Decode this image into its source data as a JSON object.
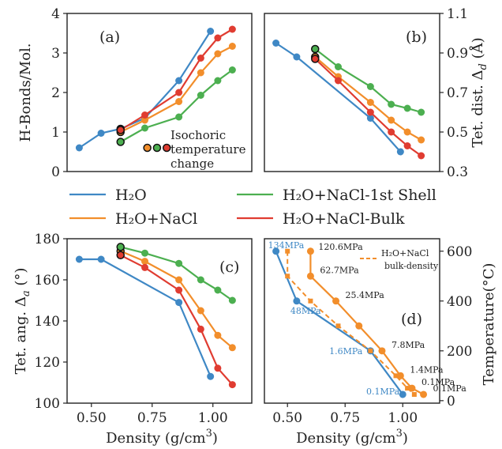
{
  "figure": {
    "legend": [
      {
        "label": "H$_2$O",
        "text": "H₂O",
        "color": "#3f88c5"
      },
      {
        "label": "H2O+NaCl-1st Shell",
        "text": "H₂O+NaCl-1st Shell",
        "color": "#4caf50"
      },
      {
        "label": "H2O+NaCl",
        "text": "H₂O+NaCl",
        "color": "#f28e2b"
      },
      {
        "label": "H2O+NaCl-Bulk",
        "text": "H₂O+NaCl-Bulk",
        "color": "#e03c31"
      }
    ]
  },
  "chart_data": [
    {
      "panel": "(a)",
      "type": "line",
      "xlabel": "",
      "ylabel": "H-Bonds/Mol.",
      "xlim": [
        0.4,
        1.16
      ],
      "ylim": [
        0,
        4
      ],
      "yticks": [
        "0",
        "1",
        "2",
        "3",
        "4"
      ],
      "series": [
        {
          "name": "H₂O",
          "x": [
            0.45,
            0.54,
            0.62,
            0.72,
            0.86,
            0.99
          ],
          "y": [
            0.6,
            0.97,
            1.08,
            1.35,
            2.3,
            3.55
          ]
        },
        {
          "name": "H₂O+NaCl",
          "x": [
            0.62,
            0.72,
            0.86,
            0.95,
            1.02,
            1.08
          ],
          "y": [
            1.0,
            1.3,
            1.77,
            2.5,
            2.98,
            3.17
          ]
        },
        {
          "name": "H₂O+NaCl-1st Shell",
          "x": [
            0.62,
            0.72,
            0.86,
            0.95,
            1.02,
            1.08
          ],
          "y": [
            0.75,
            1.1,
            1.38,
            1.93,
            2.3,
            2.57
          ]
        },
        {
          "name": "H₂O+NaCl-Bulk",
          "x": [
            0.62,
            0.72,
            0.86,
            0.95,
            1.02,
            1.08
          ],
          "y": [
            1.05,
            1.43,
            2.0,
            2.87,
            3.38,
            3.6
          ]
        }
      ],
      "annotation": [
        "Isochoric",
        "temperature",
        "change"
      ],
      "isochoric_markers": [
        {
          "x": 0.73,
          "y": 0.6,
          "color": "#f28e2b"
        },
        {
          "x": 0.77,
          "y": 0.6,
          "color": "#4caf50"
        },
        {
          "x": 0.81,
          "y": 0.6,
          "color": "#e03c31"
        }
      ]
    },
    {
      "panel": "(b)",
      "type": "line",
      "xlabel": "",
      "ylabel": "Tet. dist. Δd (Å)",
      "ylabel_main": "Tet. dist. Δ",
      "ylabel_sub": "d",
      "ylabel_unit": " (Å)",
      "xlim": [
        0.4,
        1.16
      ],
      "ylim": [
        0.3,
        1.1
      ],
      "yticks": [
        "0.3",
        "0.5",
        "0.7",
        "0.9",
        "1.1"
      ],
      "series": [
        {
          "name": "H₂O",
          "x": [
            0.45,
            0.54,
            0.86,
            0.99
          ],
          "y": [
            0.95,
            0.88,
            0.57,
            0.4
          ]
        },
        {
          "name": "H₂O+NaCl",
          "x": [
            0.62,
            0.72,
            0.86,
            0.95,
            1.02,
            1.08
          ],
          "y": [
            0.88,
            0.78,
            0.65,
            0.56,
            0.5,
            0.46
          ]
        },
        {
          "name": "H₂O+NaCl-1st Shell",
          "x": [
            0.62,
            0.72,
            0.86,
            0.95,
            1.02,
            1.08
          ],
          "y": [
            0.92,
            0.83,
            0.73,
            0.64,
            0.62,
            0.6
          ]
        },
        {
          "name": "H₂O+NaCl-Bulk",
          "x": [
            0.62,
            0.72,
            0.86,
            0.95,
            1.02,
            1.08
          ],
          "y": [
            0.87,
            0.76,
            0.6,
            0.5,
            0.43,
            0.38
          ]
        }
      ]
    },
    {
      "panel": "(c)",
      "type": "line",
      "xlabel": "Density (g/cm³)",
      "xlabel_main": "Density (g/cm",
      "xlabel_sup": "3",
      "xlabel_end": ")",
      "ylabel": "Tet. ang. Δa (°)",
      "ylabel_main": "Tet. ang. Δ",
      "ylabel_sub": "a",
      "ylabel_unit": " (°)",
      "xlim": [
        0.4,
        1.16
      ],
      "ylim": [
        100,
        180
      ],
      "xticks": [
        0.5,
        0.75,
        1.0
      ],
      "xtick_labels": [
        "0.50",
        "0.75",
        "1.00"
      ],
      "yticks": [
        "100",
        "120",
        "140",
        "160",
        "180"
      ],
      "series": [
        {
          "name": "H₂O",
          "x": [
            0.45,
            0.54,
            0.86,
            0.99
          ],
          "y": [
            170,
            170,
            149,
            113
          ]
        },
        {
          "name": "H₂O+NaCl",
          "x": [
            0.62,
            0.72,
            0.86,
            0.95,
            1.02,
            1.08
          ],
          "y": [
            174,
            169,
            160,
            145,
            133,
            127
          ]
        },
        {
          "name": "H₂O+NaCl-1st Shell",
          "x": [
            0.62,
            0.72,
            0.86,
            0.95,
            1.02,
            1.08
          ],
          "y": [
            176,
            173,
            168,
            160,
            155,
            150
          ]
        },
        {
          "name": "H₂O+NaCl-Bulk",
          "x": [
            0.62,
            0.72,
            0.86,
            0.95,
            1.02,
            1.08
          ],
          "y": [
            172,
            166,
            155,
            136,
            117,
            109
          ]
        }
      ]
    },
    {
      "panel": "(d)",
      "type": "line",
      "xlabel": "Density (g/cm³)",
      "xlabel_main": "Density (g/cm",
      "xlabel_sup": "3",
      "xlabel_end": ")",
      "ylabel": "Temperature(°C)",
      "xlim": [
        0.4,
        1.16
      ],
      "ylim": [
        -10,
        650
      ],
      "xticks": [
        0.5,
        0.75,
        1.0
      ],
      "xtick_labels": [
        "0.50",
        "0.75",
        "1.00"
      ],
      "yticks": [
        0,
        200,
        400,
        600
      ],
      "ytick_labels": [
        "0",
        "200",
        "400",
        "600"
      ],
      "series": [
        {
          "name": "H₂O",
          "x": [
            0.45,
            0.54,
            0.86,
            1.0
          ],
          "y": [
            600,
            400,
            200,
            25
          ]
        },
        {
          "name": "H₂O+NaCl",
          "x": [
            0.6,
            0.6,
            0.71,
            0.81,
            0.91,
            0.99,
            1.04,
            1.09
          ],
          "y": [
            600,
            500,
            400,
            300,
            200,
            100,
            50,
            25
          ]
        },
        {
          "name": "H₂O+NaCl bulk-density",
          "x": [
            0.5,
            0.5,
            0.6,
            0.72,
            0.86,
            0.97,
            1.02,
            1.05
          ],
          "y": [
            600,
            500,
            400,
            300,
            200,
            100,
            50,
            25
          ]
        }
      ],
      "legend_text": [
        "H₂O+NaCl",
        "bulk-density"
      ],
      "pressure_labels_nacl": [
        "120.6MPa",
        "62.7MPa",
        "25.4MPa",
        "7.8MPa",
        "1.4MPa",
        "0.1MPa",
        "0.1MPa"
      ],
      "pressure_labels_water": [
        "134MPa",
        "48MPa",
        "1.6MPa",
        "0.1MPa"
      ]
    }
  ],
  "panel_tags": [
    "(a)",
    "(b)",
    "(c)",
    "(d)"
  ]
}
